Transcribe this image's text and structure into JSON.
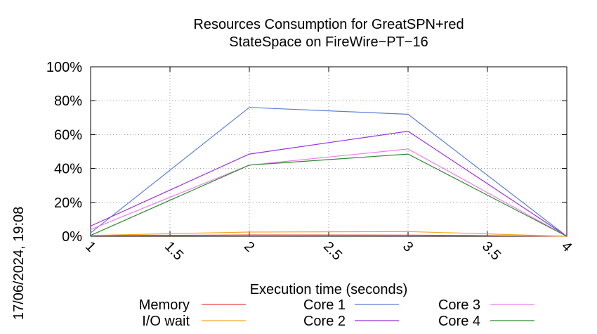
{
  "chart_data": {
    "type": "line",
    "title_lines": [
      "Resources Consumption for GreatSPN+red",
      "StateSpace on FireWire−PT−16"
    ],
    "xlabel": "Execution time (seconds)",
    "ylabel": "",
    "xlim": [
      1,
      4
    ],
    "ylim": [
      0,
      100
    ],
    "x_ticks": [
      1,
      1.5,
      2,
      2.5,
      3,
      3.5,
      4
    ],
    "x_tick_labels": [
      "1",
      "1.5",
      "2",
      "2.5",
      "3",
      "3.5",
      "4"
    ],
    "y_ticks": [
      0,
      20,
      40,
      60,
      80,
      100
    ],
    "y_tick_labels": [
      "0%",
      "20%",
      "40%",
      "60%",
      "80%",
      "100%"
    ],
    "grid": true,
    "legend_position": "bottom",
    "x": [
      1,
      2,
      3,
      4
    ],
    "series": [
      {
        "name": "Memory",
        "color": "#e8473a",
        "values": [
          0.3,
          0.8,
          0.7,
          0
        ]
      },
      {
        "name": "I/O wait",
        "color": "#f5a623",
        "values": [
          0.5,
          2.5,
          2.8,
          0
        ]
      },
      {
        "name": "Core 1",
        "color": "#5b7fd6",
        "values": [
          2,
          76,
          72,
          0
        ]
      },
      {
        "name": "Core 2",
        "color": "#9b30e0",
        "values": [
          6,
          48.5,
          62,
          0
        ]
      },
      {
        "name": "Core 3",
        "color": "#f07cf0",
        "values": [
          4,
          42,
          51.5,
          0
        ]
      },
      {
        "name": "Core 4",
        "color": "#2e8b2e",
        "values": [
          0.5,
          42,
          48.5,
          0
        ]
      }
    ]
  },
  "timestamp": "17/06/2024, 19:08"
}
